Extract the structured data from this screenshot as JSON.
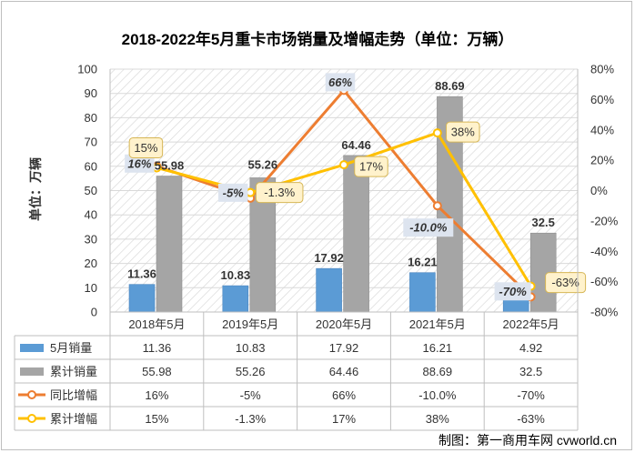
{
  "chart_data": {
    "type": "bar",
    "title": "2018-2022年5月重卡市场销量及增幅走势（单位：万辆）",
    "ylabel": "单位：万辆",
    "ylim": [
      0,
      100
    ],
    "y_ticks": [
      0,
      10,
      20,
      30,
      40,
      50,
      60,
      70,
      80,
      90,
      100
    ],
    "y2lim": [
      -80,
      80
    ],
    "y2_ticks": [
      "-80%",
      "-60%",
      "-40%",
      "-20%",
      "0%",
      "20%",
      "40%",
      "60%",
      "80%"
    ],
    "y2_tick_values": [
      -80,
      -60,
      -40,
      -20,
      0,
      20,
      40,
      60,
      80
    ],
    "categories": [
      "2018年5月",
      "2019年5月",
      "2020年5月",
      "2021年5月",
      "2022年5月"
    ],
    "series": [
      {
        "name": "5月销量",
        "kind": "bar",
        "axis": "left",
        "color": "#5b9bd5",
        "values": [
          11.36,
          10.83,
          17.92,
          16.21,
          4.92
        ],
        "labels": [
          "11.36",
          "10.83",
          "17.92",
          "16.21",
          "4.92"
        ]
      },
      {
        "name": "累计销量",
        "kind": "bar",
        "axis": "left",
        "color": "#a5a5a5",
        "values": [
          55.98,
          55.26,
          64.46,
          88.69,
          32.5
        ],
        "labels": [
          "55.98",
          "55.26",
          "64.46",
          "88.69",
          "32.5"
        ]
      },
      {
        "name": "同比增幅",
        "kind": "line",
        "axis": "right",
        "color": "#ed7d31",
        "values": [
          16,
          -5,
          66,
          -10.0,
          -70
        ],
        "labels": [
          "16%",
          "-5%",
          "66%",
          "-10.0%",
          "-70%"
        ]
      },
      {
        "name": "累计增幅",
        "kind": "line",
        "axis": "right",
        "color": "#ffc000",
        "values": [
          15,
          -1.3,
          17,
          38,
          -63
        ],
        "labels": [
          "15%",
          "-1.3%",
          "17%",
          "38%",
          "-63%"
        ]
      }
    ],
    "data_table": true,
    "source": "制图：第一商用车网 cvworld.cn"
  },
  "colors": {
    "callout_fill": "#fff2cc",
    "callout_border": "#d6b656",
    "label_box_fill": "#dde4ef",
    "grid": "#d9d9d9",
    "hatch": "#d9d9d9"
  }
}
